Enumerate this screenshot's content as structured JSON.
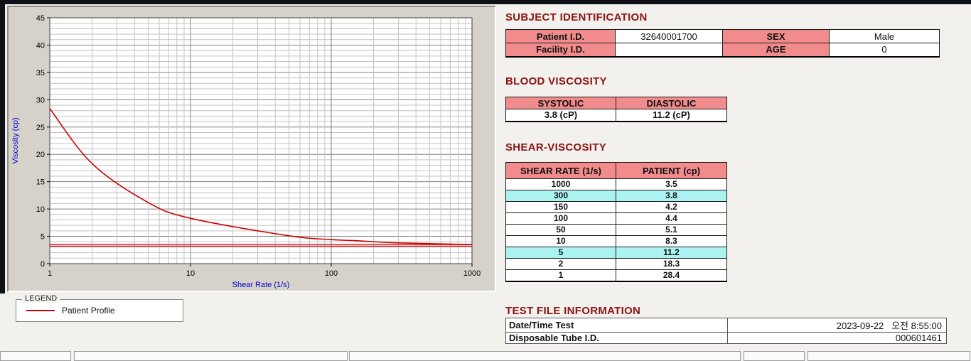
{
  "colors": {
    "title_maroon": "#8b1414",
    "header_pink": "#f28b8b",
    "highlight_cyan": "#abf3f1",
    "series_red": "#cc0000",
    "axis_label_blue": "#0000cc"
  },
  "subject_identification": {
    "title": "SUBJECT IDENTIFICATION",
    "rows": [
      {
        "label1": "Patient I.D.",
        "value1": "32640001700",
        "label2": "SEX",
        "value2": "Male"
      },
      {
        "label1": "Facility I.D.",
        "value1": "",
        "label2": "AGE",
        "value2": "0"
      }
    ]
  },
  "blood_viscosity": {
    "title": "BLOOD VISCOSITY",
    "headers": [
      "SYSTOLIC",
      "DIASTOLIC"
    ],
    "values": [
      "3.8 (cP)",
      "11.2 (cP)"
    ]
  },
  "shear_viscosity": {
    "title": "SHEAR-VISCOSITY",
    "headers": [
      "SHEAR RATE (1/s)",
      "PATIENT (cp)"
    ],
    "rows": [
      {
        "rate": "1000",
        "value": "3.5"
      },
      {
        "rate": "300",
        "value": "3.8"
      },
      {
        "rate": "150",
        "value": "4.2"
      },
      {
        "rate": "100",
        "value": "4.4"
      },
      {
        "rate": "50",
        "value": "5.1"
      },
      {
        "rate": "10",
        "value": "8.3"
      },
      {
        "rate": "5",
        "value": "11.2"
      },
      {
        "rate": "2",
        "value": "18.3"
      },
      {
        "rate": "1",
        "value": "28.4"
      }
    ],
    "highlighted_rates": [
      "300",
      "5"
    ]
  },
  "test_file_information": {
    "title": "TEST FILE INFORMATION",
    "rows": [
      {
        "label": "Date/Time Test",
        "value": "2023-09-22   오전 8:55:00"
      },
      {
        "label": "Disposable Tube I.D.",
        "value": "000601461"
      }
    ]
  },
  "legend": {
    "box_label": "LEGEND",
    "series_label": "Patient Profile",
    "line_color": "#cc0000"
  },
  "chart_data": {
    "type": "line",
    "title": "",
    "xlabel": "Shear Rate (1/s)",
    "ylabel": "Viscosity (cp)",
    "x_scale": "log",
    "xlim": [
      1,
      1000
    ],
    "ylim": [
      0,
      45
    ],
    "y_major_ticks": [
      0,
      5,
      10,
      15,
      20,
      25,
      30,
      35,
      40,
      45
    ],
    "x_ticks": [
      1,
      10,
      100,
      1000
    ],
    "grid": "major+minor",
    "legend_position": "below-left",
    "series": [
      {
        "name": "Patient Profile",
        "color": "#cc0000",
        "x": [
          1,
          2,
          5,
          10,
          50,
          100,
          150,
          300,
          1000
        ],
        "y": [
          28.4,
          18.3,
          11.2,
          8.3,
          5.1,
          4.4,
          4.2,
          3.8,
          3.5
        ]
      }
    ],
    "reference_lines": [
      {
        "y": 3.2,
        "color": "#cc0000"
      },
      {
        "y": 3.5,
        "color": "#cc0000"
      }
    ]
  }
}
